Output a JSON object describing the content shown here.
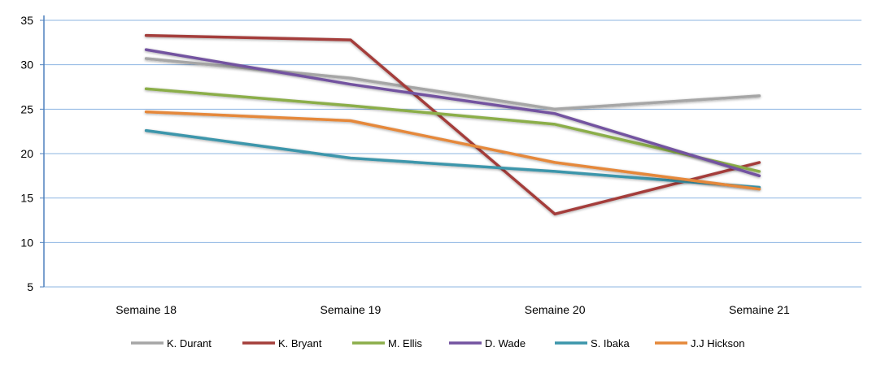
{
  "chart_data": {
    "type": "line",
    "title": "",
    "xlabel": "",
    "ylabel": "",
    "categories": [
      "Semaine 18",
      "Semaine 19",
      "Semaine 20",
      "Semaine 21"
    ],
    "ylim": [
      5,
      35
    ],
    "yticks": [
      "5",
      "10",
      "15",
      "20",
      "25",
      "30",
      "35"
    ],
    "grid": true,
    "legend_position": "bottom",
    "series": [
      {
        "name": "K. Durant",
        "color": "#A6A6A6",
        "values": [
          30.7,
          28.5,
          25.0,
          26.5
        ]
      },
      {
        "name": "K. Bryant",
        "color": "#A43E3A",
        "values": [
          33.3,
          32.8,
          13.2,
          19.0
        ]
      },
      {
        "name": "M. Ellis",
        "color": "#8BAE4A",
        "values": [
          27.3,
          25.4,
          23.3,
          18.0
        ]
      },
      {
        "name": "D. Wade",
        "color": "#7353A0",
        "values": [
          31.7,
          27.8,
          24.5,
          17.5
        ]
      },
      {
        "name": "S. Ibaka",
        "color": "#3C96AB",
        "values": [
          22.6,
          19.5,
          18.0,
          16.2
        ]
      },
      {
        "name": "J.J Hickson",
        "color": "#E5883A",
        "values": [
          24.7,
          23.7,
          19.0,
          16.0
        ]
      }
    ],
    "gridline_color": "#8DB4E2",
    "axis_color": "#4F81BD"
  }
}
